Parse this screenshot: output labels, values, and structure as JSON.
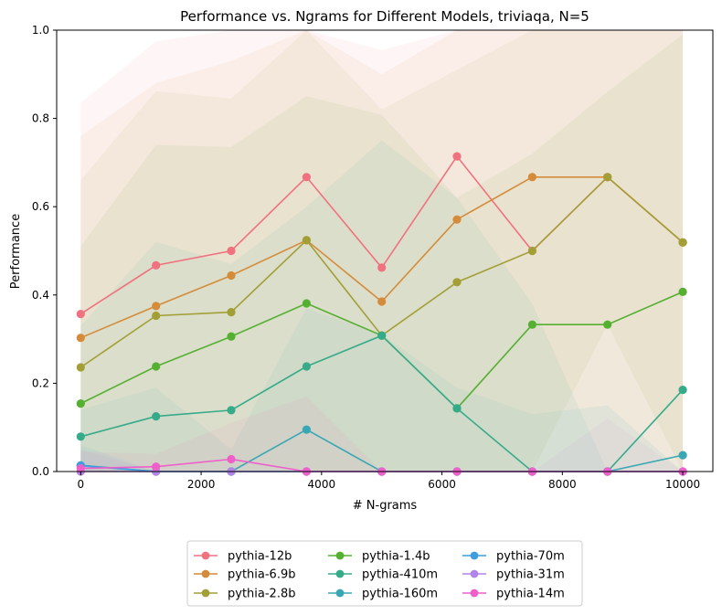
{
  "chart_data": {
    "type": "line",
    "title": "Performance vs. Ngrams for Different Models, triviaqa, N=5",
    "xlabel": "# N-grams",
    "ylabel": "Performance",
    "xlim": [
      -400,
      10500
    ],
    "ylim": [
      0,
      1.0
    ],
    "x_ticks": [
      0,
      2000,
      4000,
      6000,
      8000,
      10000
    ],
    "y_ticks": [
      0.0,
      0.2,
      0.4,
      0.6,
      0.8,
      1.0
    ],
    "x": [
      0,
      1250,
      2500,
      3750,
      5000,
      6250,
      7500,
      8750,
      10000
    ],
    "grid": false,
    "legend_position": "bottom-center",
    "series": [
      {
        "name": "pythia-12b",
        "color": "#f0717f",
        "values": [
          0.357,
          0.467,
          0.5,
          0.667,
          0.462,
          0.714,
          0.5,
          0.667,
          0.519
        ],
        "band_upper": [
          0.835,
          0.975,
          1.0,
          1.0,
          0.955,
          1.0,
          1.0,
          1.0,
          1.0
        ],
        "band_lower": [
          0.0,
          0.0,
          0.0,
          0.0,
          0.0,
          0.0,
          0.0,
          0.0,
          0.0
        ]
      },
      {
        "name": "pythia-6.9b",
        "color": "#d48c3a",
        "values": [
          0.303,
          0.375,
          0.444,
          0.524,
          0.385,
          0.571,
          0.667,
          0.667,
          0.519
        ],
        "band_upper": [
          0.76,
          0.88,
          0.93,
          1.0,
          0.9,
          1.0,
          1.0,
          1.0,
          1.0
        ],
        "band_lower": [
          0.0,
          0.0,
          0.0,
          0.0,
          0.0,
          0.0,
          0.0,
          0.0,
          0.0
        ]
      },
      {
        "name": "pythia-2.8b",
        "color": "#a29f36",
        "values": [
          0.236,
          0.353,
          0.361,
          0.524,
          0.308,
          0.429,
          0.5,
          0.667,
          0.519
        ],
        "band_upper": [
          0.66,
          0.862,
          0.845,
          1.0,
          0.82,
          0.91,
          1.0,
          1.0,
          1.0
        ],
        "band_lower": [
          0.0,
          0.0,
          0.0,
          0.0,
          0.0,
          0.0,
          0.0,
          0.333,
          0.0
        ]
      },
      {
        "name": "pythia-1.4b",
        "color": "#55b032",
        "values": [
          0.154,
          0.238,
          0.306,
          0.381,
          0.308,
          0.143,
          0.333,
          0.333,
          0.407
        ],
        "band_upper": [
          0.51,
          0.74,
          0.735,
          0.85,
          0.808,
          0.62,
          0.72,
          0.86,
          0.99
        ],
        "band_lower": [
          0.0,
          0.0,
          0.0,
          0.0,
          0.0,
          0.0,
          0.0,
          0.0,
          0.0
        ]
      },
      {
        "name": "pythia-410m",
        "color": "#36ab8a",
        "values": [
          0.079,
          0.125,
          0.139,
          0.238,
          0.308,
          0.143,
          0.0,
          0.0,
          0.185
        ],
        "band_upper": [
          0.33,
          0.52,
          0.47,
          0.6,
          0.75,
          0.62,
          0.38,
          0.0,
          0.0
        ],
        "band_lower": [
          0.0,
          0.0,
          0.0,
          0.0,
          0.0,
          0.0,
          0.0,
          0.0,
          0.0
        ]
      },
      {
        "name": "pythia-160m",
        "color": "#3aa8b4",
        "values": [
          0.014,
          0.0,
          0.0,
          0.095,
          0.0,
          0.0,
          0.0,
          0.0,
          0.037
        ],
        "band_upper": [
          0.14,
          0.19,
          0.05,
          0.37,
          0.31,
          0.19,
          0.13,
          0.15,
          0.0
        ],
        "band_lower": [
          0.0,
          0.0,
          0.0,
          0.0,
          0.0,
          0.0,
          0.0,
          0.0,
          0.0
        ]
      },
      {
        "name": "pythia-70m",
        "color": "#3d9de0",
        "values": [
          0.013,
          0.0,
          0.0,
          0.0,
          0.0,
          0.0,
          0.0,
          0.0,
          0.0
        ],
        "band_upper": [
          0.06,
          0.0,
          0.0,
          0.0,
          0.0,
          0.0,
          0.0,
          0.0,
          0.0
        ],
        "band_lower": [
          0.0,
          0.0,
          0.0,
          0.0,
          0.0,
          0.0,
          0.0,
          0.0,
          0.0
        ]
      },
      {
        "name": "pythia-31m",
        "color": "#b384e8",
        "values": [
          0.0,
          0.0,
          0.0,
          0.0,
          0.0,
          0.0,
          0.0,
          0.0,
          0.0
        ],
        "band_upper": [
          0.05,
          0.0,
          0.0,
          0.0,
          0.0,
          0.0,
          0.0,
          0.12,
          0.0
        ],
        "band_lower": [
          0.0,
          0.0,
          0.0,
          0.0,
          0.0,
          0.0,
          0.0,
          0.0,
          0.0
        ]
      },
      {
        "name": "pythia-14m",
        "color": "#ee5fcb",
        "values": [
          0.007,
          0.011,
          0.028,
          0.0,
          0.0,
          0.0,
          0.0,
          0.0,
          0.0
        ],
        "band_upper": [
          0.045,
          0.04,
          0.11,
          0.17,
          0.0,
          0.0,
          0.0,
          0.0,
          0.0
        ],
        "band_lower": [
          0.0,
          0.0,
          0.0,
          0.0,
          0.0,
          0.0,
          0.0,
          0.0,
          0.0
        ]
      }
    ]
  }
}
